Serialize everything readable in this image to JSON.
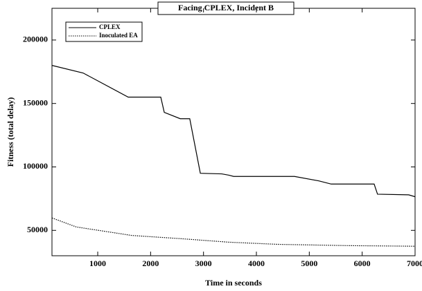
{
  "chart_data": {
    "type": "line",
    "title": "Facing CPLEX, Incident B",
    "x_label": "Time in seconds",
    "y_label": "Fitness (total delay)",
    "xlim": [
      135,
      7000
    ],
    "xticks": [
      1000,
      2000,
      3000,
      4000,
      5000,
      6000,
      7000
    ],
    "ylim": [
      30000,
      225000
    ],
    "yticks": [
      50000,
      100000,
      150000,
      200000
    ],
    "series": [
      {
        "name": "CPLEX",
        "color": "#000000",
        "dash": "solid",
        "x": [
          135,
          725,
          1576,
          2192,
          2258,
          2560,
          2740,
          2940,
          3345,
          3480,
          3570,
          4720,
          5180,
          5415,
          6226,
          6290,
          6880,
          7000
        ],
        "values": [
          180000,
          174000,
          155000,
          155000,
          143000,
          138000,
          138000,
          95000,
          94500,
          93500,
          92500,
          92500,
          89000,
          86500,
          86500,
          78500,
          78000,
          76500
        ]
      },
      {
        "name": "Inoculated EA",
        "color": "#000000",
        "dash": "dotted",
        "x": [
          135,
          594,
          1642,
          2559,
          3476,
          4393,
          5703,
          7000
        ],
        "values": [
          59800,
          52700,
          46000,
          43500,
          40700,
          39000,
          38000,
          37500
        ]
      }
    ]
  }
}
